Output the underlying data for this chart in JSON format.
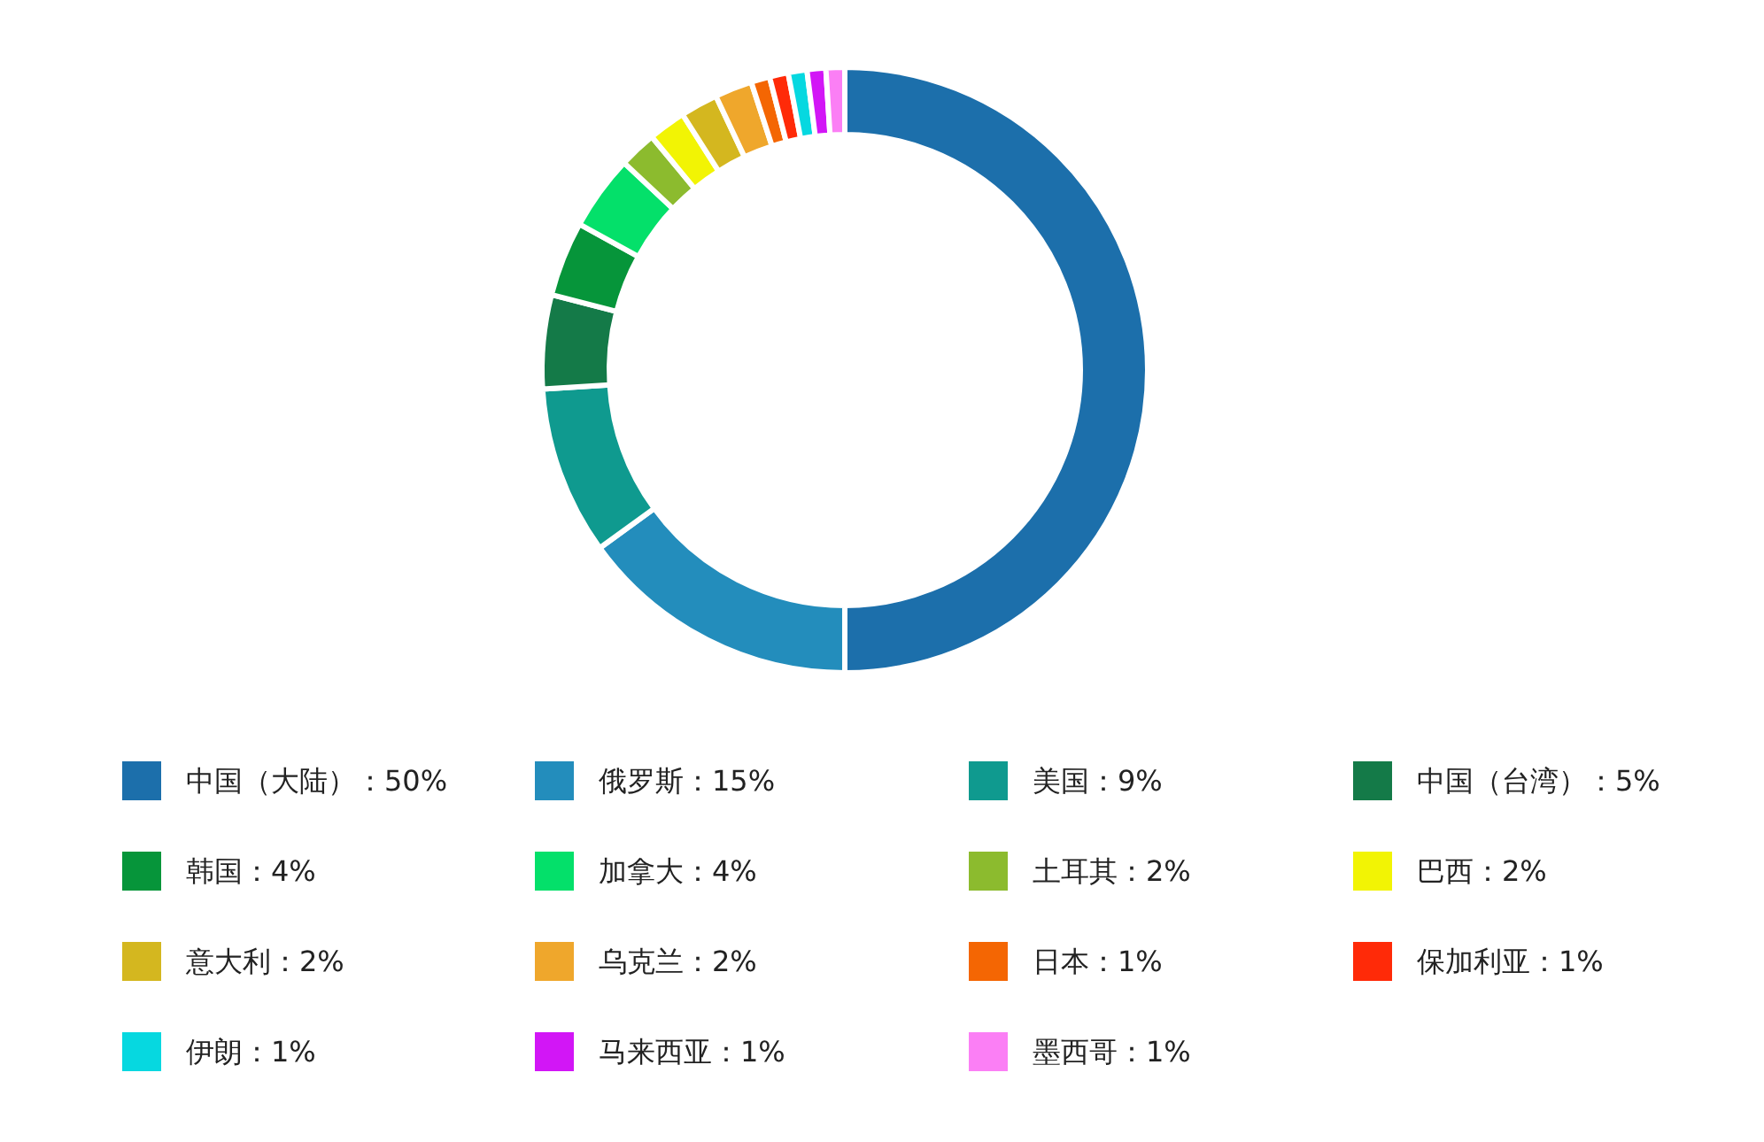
{
  "chart_data": {
    "type": "donut",
    "categories": [
      "中国（大陆）",
      "俄罗斯",
      "美国",
      "中国（台湾）",
      "韩国",
      "加拿大",
      "土耳其",
      "巴西",
      "意大利",
      "乌克兰",
      "日本",
      "保加利亚",
      "伊朗",
      "马来西亚",
      "墨西哥"
    ],
    "values": [
      50,
      15,
      9,
      5,
      4,
      4,
      2,
      2,
      2,
      2,
      1,
      1,
      1,
      1,
      1
    ],
    "value_labels": [
      "50%",
      "15%",
      "9%",
      "5%",
      "4%",
      "4%",
      "2%",
      "2%",
      "2%",
      "2%",
      "1%",
      "1%",
      "1%",
      "1%",
      "1%"
    ],
    "colors": [
      "#1c6fab",
      "#238dbc",
      "#0f9a8f",
      "#147a48",
      "#06953a",
      "#04e06a",
      "#8cbb2e",
      "#f2f404",
      "#d4b71f",
      "#efa72c",
      "#f46603",
      "#ff2a08",
      "#06d8e0",
      "#d216f6",
      "#fb7ff5"
    ],
    "legend": "bottom"
  }
}
